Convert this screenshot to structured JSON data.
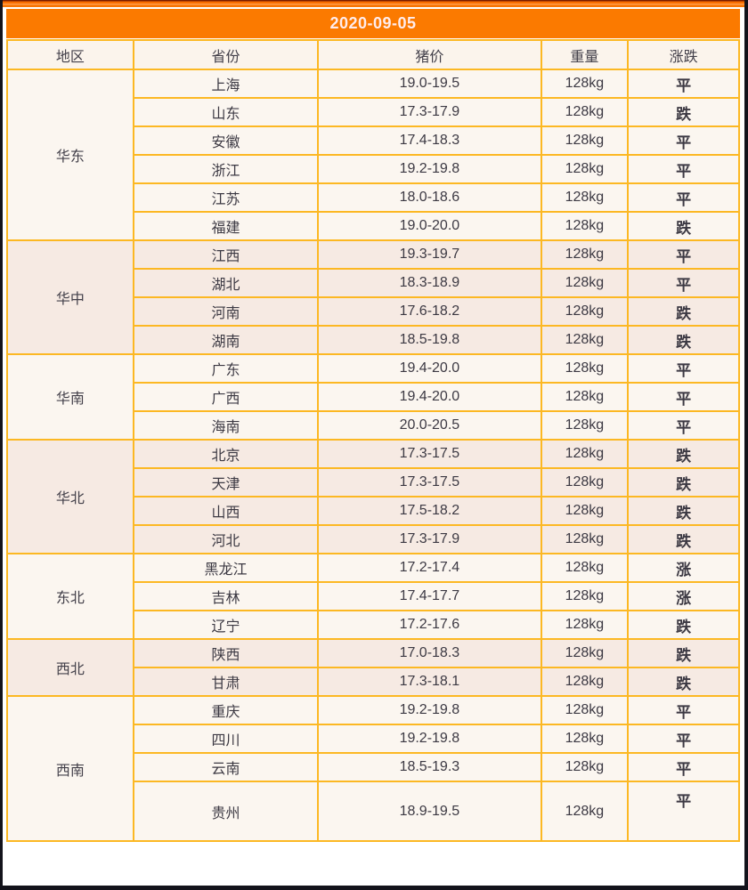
{
  "title_bar": {
    "date": "2020-09-05"
  },
  "table": {
    "columns": [
      "地区",
      "省份",
      "猪价",
      "重量",
      "涨跌"
    ],
    "regions": [
      {
        "name": "华东",
        "shade": "light",
        "rows": [
          {
            "province": "上海",
            "price": "19.0-19.5",
            "weight": "128kg",
            "change": "平",
            "trend": "flat"
          },
          {
            "province": "山东",
            "price": "17.3-17.9",
            "weight": "128kg",
            "change": "跌",
            "trend": "down"
          },
          {
            "province": "安徽",
            "price": "17.4-18.3",
            "weight": "128kg",
            "change": "平",
            "trend": "flat"
          },
          {
            "province": "浙江",
            "price": "19.2-19.8",
            "weight": "128kg",
            "change": "平",
            "trend": "flat"
          },
          {
            "province": "江苏",
            "price": "18.0-18.6",
            "weight": "128kg",
            "change": "平",
            "trend": "flat"
          },
          {
            "province": "福建",
            "price": "19.0-20.0",
            "weight": "128kg",
            "change": "跌",
            "trend": "down"
          }
        ]
      },
      {
        "name": "华中",
        "shade": "pink",
        "rows": [
          {
            "province": "江西",
            "price": "19.3-19.7",
            "weight": "128kg",
            "change": "平",
            "trend": "flat"
          },
          {
            "province": "湖北",
            "price": "18.3-18.9",
            "weight": "128kg",
            "change": "平",
            "trend": "flat"
          },
          {
            "province": "河南",
            "price": "17.6-18.2",
            "weight": "128kg",
            "change": "跌",
            "trend": "down"
          },
          {
            "province": "湖南",
            "price": "18.5-19.8",
            "weight": "128kg",
            "change": "跌",
            "trend": "down"
          }
        ]
      },
      {
        "name": "华南",
        "shade": "light",
        "rows": [
          {
            "province": "广东",
            "price": "19.4-20.0",
            "weight": "128kg",
            "change": "平",
            "trend": "flat"
          },
          {
            "province": "广西",
            "price": "19.4-20.0",
            "weight": "128kg",
            "change": "平",
            "trend": "flat"
          },
          {
            "province": "海南",
            "price": "20.0-20.5",
            "weight": "128kg",
            "change": "平",
            "trend": "flat"
          }
        ]
      },
      {
        "name": "华北",
        "shade": "pink",
        "rows": [
          {
            "province": "北京",
            "price": "17.3-17.5",
            "weight": "128kg",
            "change": "跌",
            "trend": "down"
          },
          {
            "province": "天津",
            "price": "17.3-17.5",
            "weight": "128kg",
            "change": "跌",
            "trend": "down"
          },
          {
            "province": "山西",
            "price": "17.5-18.2",
            "weight": "128kg",
            "change": "跌",
            "trend": "down"
          },
          {
            "province": "河北",
            "price": "17.3-17.9",
            "weight": "128kg",
            "change": "跌",
            "trend": "down"
          }
        ]
      },
      {
        "name": "东北",
        "shade": "light",
        "rows": [
          {
            "province": "黑龙江",
            "price": "17.2-17.4",
            "weight": "128kg",
            "change": "涨",
            "trend": "up"
          },
          {
            "province": "吉林",
            "price": "17.4-17.7",
            "weight": "128kg",
            "change": "涨",
            "trend": "up"
          },
          {
            "province": "辽宁",
            "price": "17.2-17.6",
            "weight": "128kg",
            "change": "跌",
            "trend": "down"
          }
        ]
      },
      {
        "name": "西北",
        "shade": "pink",
        "rows": [
          {
            "province": "陕西",
            "price": "17.0-18.3",
            "weight": "128kg",
            "change": "跌",
            "trend": "down"
          },
          {
            "province": "甘肃",
            "price": "17.3-18.1",
            "weight": "128kg",
            "change": "跌",
            "trend": "down"
          }
        ]
      },
      {
        "name": "西南",
        "shade": "light",
        "rows": [
          {
            "province": "重庆",
            "price": "19.2-19.8",
            "weight": "128kg",
            "change": "平",
            "trend": "flat"
          },
          {
            "province": "四川",
            "price": "19.2-19.8",
            "weight": "128kg",
            "change": "平",
            "trend": "flat"
          },
          {
            "province": "云南",
            "price": "18.5-19.3",
            "weight": "128kg",
            "change": "平",
            "trend": "flat"
          },
          {
            "province": "贵州",
            "price": "18.9-19.5",
            "weight": "128kg",
            "change": "平",
            "trend": "flat",
            "tall": true
          }
        ]
      }
    ]
  },
  "colors": {
    "accent_orange": "#fb7a00",
    "grid_gold": "#fcb823",
    "frame_dark": "#13131b",
    "block_light": "#fbf6f0",
    "block_pink": "#f6eae3",
    "trend_flat": "#1c1c1c",
    "trend_down": "#2fce2f",
    "trend_up": "#e9394a",
    "title_text": "#ffecec"
  }
}
